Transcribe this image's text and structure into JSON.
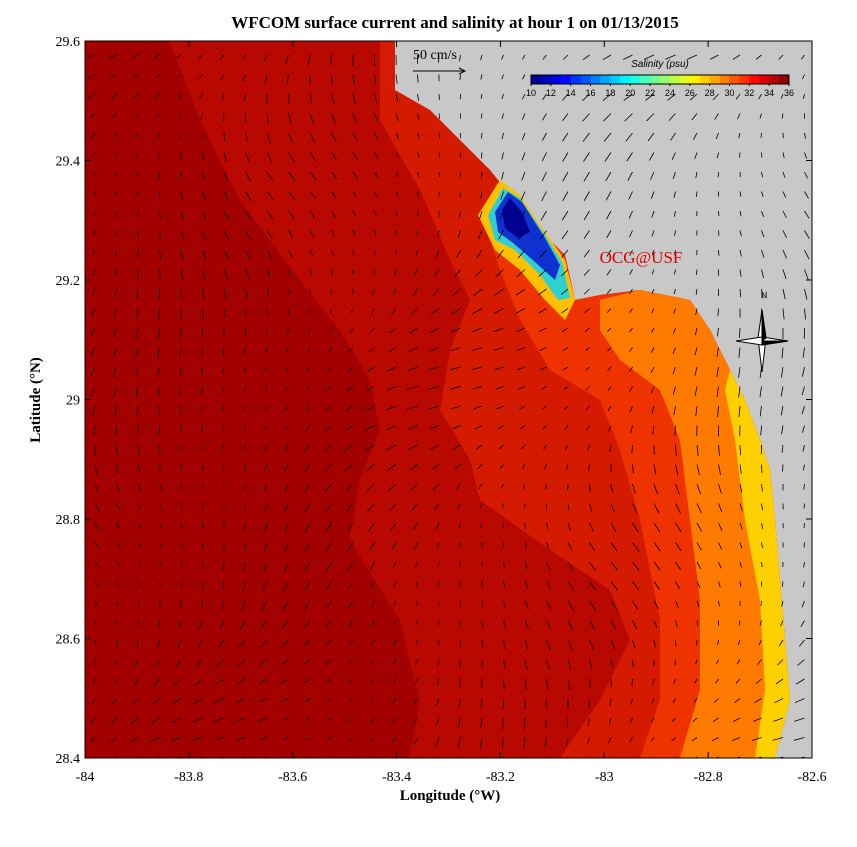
{
  "chart_data": {
    "type": "map",
    "title": "WFCOM surface current and salinity at hour 1 on 01/13/2015",
    "x_label": "Longitude (°W)",
    "y_label": "Latitude (°N)",
    "xlim": [
      -84,
      -82.6
    ],
    "ylim": [
      28.4,
      29.6
    ],
    "xticks": [
      -84,
      -83.8,
      -83.6,
      -83.4,
      -83.2,
      -83,
      -82.8,
      -82.6
    ],
    "yticks": [
      28.4,
      28.6,
      28.8,
      29,
      29.2,
      29.4,
      29.6
    ],
    "colorbar": {
      "title": "Salinity (psu)",
      "lim": [
        10,
        36
      ],
      "ticks": [
        10,
        12,
        14,
        16,
        18,
        20,
        22,
        24,
        26,
        28,
        30,
        32,
        34,
        36
      ]
    },
    "scale_label": "50 cm/s",
    "credit": "OCG@USF",
    "north_label": "N"
  }
}
